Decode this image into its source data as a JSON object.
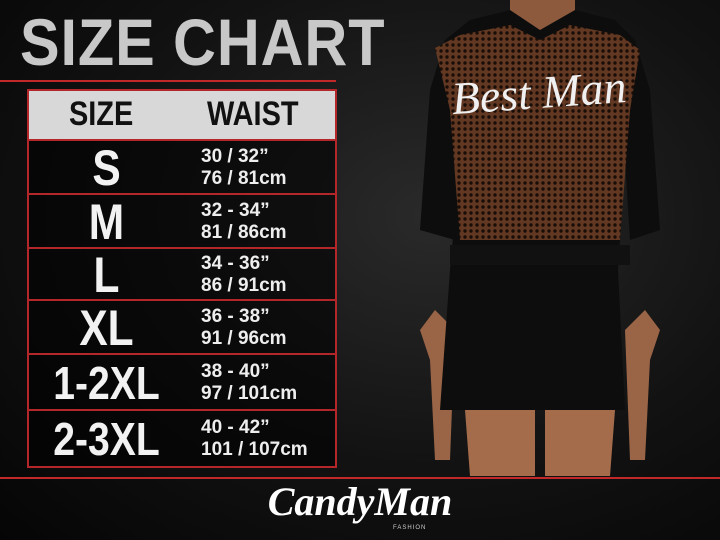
{
  "header": {
    "title": "SIZE CHART"
  },
  "table": {
    "columns": [
      "SIZE",
      "WAIST"
    ],
    "rows": [
      [
        "S",
        "30 / 32”",
        "76 / 81cm"
      ],
      [
        "M",
        "32 - 34”",
        "81 / 86cm"
      ],
      [
        "L",
        "34 - 36”",
        "86 / 91cm"
      ],
      [
        "XL",
        "36 - 38”",
        "91 / 96cm"
      ],
      [
        "1-2XL",
        "38 - 40”",
        "97 / 101cm"
      ],
      [
        "2-3XL",
        "40 - 42”",
        "101 / 107cm"
      ]
    ]
  },
  "image": {
    "garment_text": "Best Man"
  },
  "logo": {
    "brand": "CandyMan",
    "sub": "FASHION"
  }
}
